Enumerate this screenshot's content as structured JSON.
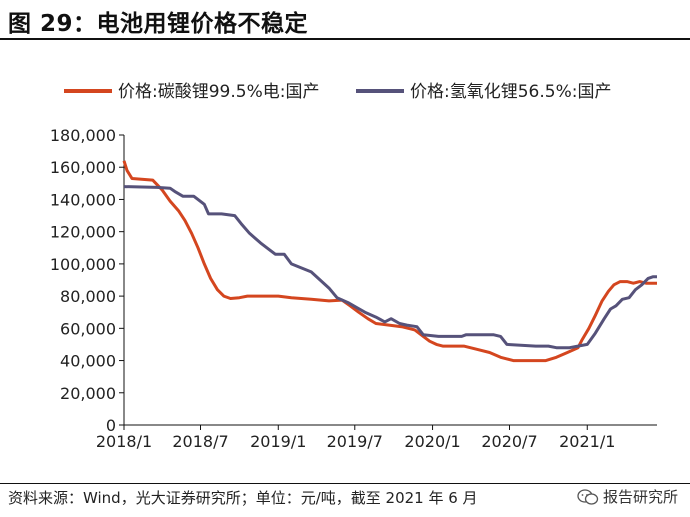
{
  "page": {
    "title": "图 29：电池用锂价格不稳定",
    "source": "资料来源：Wind，光大证券研究所；单位：元/吨，截至 2021 年 6 月",
    "watermark": "报告研究所"
  },
  "colors": {
    "series_1": "#d4461f",
    "series_2": "#56527a",
    "axis": "#111111"
  },
  "chart_data": {
    "type": "line",
    "title": "",
    "xlabel": "",
    "ylabel": "",
    "ylim": [
      0,
      180000
    ],
    "yticks": [
      0,
      20000,
      40000,
      60000,
      80000,
      100000,
      120000,
      140000,
      160000,
      180000
    ],
    "ytick_labels": [
      "0",
      "20,000",
      "40,000",
      "60,000",
      "80,000",
      "100,000",
      "120,000",
      "140,000",
      "160,000",
      "180,000"
    ],
    "xticks": [
      "2018-01-01",
      "2018-07-01",
      "2019-01-01",
      "2019-07-01",
      "2020-01-01",
      "2020-07-01",
      "2021-01-01"
    ],
    "xtick_labels": [
      "2018/1",
      "2018/7",
      "2019/1",
      "2019/7",
      "2020/1",
      "2020/7",
      "2021/1"
    ],
    "xlim": [
      "2018-01-01",
      "2021-06-15"
    ],
    "grid": false,
    "legend_position": "top",
    "series": [
      {
        "name": "价格:碳酸锂99.5%电:国产",
        "points": [
          [
            "2018-01-01",
            164000
          ],
          [
            "2018-01-08",
            158000
          ],
          [
            "2018-01-20",
            153000
          ],
          [
            "2018-03-10",
            152000
          ],
          [
            "2018-04-01",
            146000
          ],
          [
            "2018-04-20",
            139000
          ],
          [
            "2018-05-10",
            133000
          ],
          [
            "2018-05-25",
            127000
          ],
          [
            "2018-06-10",
            119000
          ],
          [
            "2018-06-25",
            110000
          ],
          [
            "2018-07-10",
            100000
          ],
          [
            "2018-07-25",
            91000
          ],
          [
            "2018-08-10",
            84000
          ],
          [
            "2018-08-25",
            80000
          ],
          [
            "2018-09-10",
            78500
          ],
          [
            "2018-10-01",
            79000
          ],
          [
            "2018-10-20",
            80000
          ],
          [
            "2019-01-01",
            80000
          ],
          [
            "2019-02-01",
            79000
          ],
          [
            "2019-03-20",
            78000
          ],
          [
            "2019-05-01",
            77000
          ],
          [
            "2019-06-01",
            77500
          ],
          [
            "2019-06-20",
            74000
          ],
          [
            "2019-07-10",
            70000
          ],
          [
            "2019-08-01",
            66000
          ],
          [
            "2019-08-20",
            63000
          ],
          [
            "2019-09-20",
            62000
          ],
          [
            "2019-10-20",
            61000
          ],
          [
            "2019-11-20",
            59000
          ],
          [
            "2019-12-10",
            55000
          ],
          [
            "2019-12-25",
            52000
          ],
          [
            "2020-01-10",
            50000
          ],
          [
            "2020-01-25",
            49000
          ],
          [
            "2020-03-15",
            49000
          ],
          [
            "2020-04-15",
            47000
          ],
          [
            "2020-05-15",
            45000
          ],
          [
            "2020-06-10",
            42000
          ],
          [
            "2020-06-25",
            41000
          ],
          [
            "2020-07-10",
            40000
          ],
          [
            "2020-09-10",
            40000
          ],
          [
            "2020-09-25",
            40000
          ],
          [
            "2020-10-20",
            42000
          ],
          [
            "2020-11-15",
            45000
          ],
          [
            "2020-12-10",
            48000
          ],
          [
            "2020-12-20",
            53000
          ],
          [
            "2021-01-05",
            60000
          ],
          [
            "2021-01-20",
            68000
          ],
          [
            "2021-02-05",
            77000
          ],
          [
            "2021-02-20",
            83000
          ],
          [
            "2021-03-05",
            87000
          ],
          [
            "2021-03-20",
            89000
          ],
          [
            "2021-04-05",
            89000
          ],
          [
            "2021-04-20",
            88000
          ],
          [
            "2021-05-05",
            89000
          ],
          [
            "2021-05-20",
            88000
          ],
          [
            "2021-06-15",
            88000
          ]
        ]
      },
      {
        "name": "价格:氢氧化锂56.5%:国产",
        "points": [
          [
            "2018-01-01",
            148000
          ],
          [
            "2018-03-20",
            147500
          ],
          [
            "2018-04-20",
            147000
          ],
          [
            "2018-05-01",
            145000
          ],
          [
            "2018-05-20",
            142000
          ],
          [
            "2018-06-15",
            142000
          ],
          [
            "2018-07-10",
            137000
          ],
          [
            "2018-07-20",
            131000
          ],
          [
            "2018-08-20",
            131000
          ],
          [
            "2018-09-20",
            130000
          ],
          [
            "2018-10-05",
            125000
          ],
          [
            "2018-10-25",
            119000
          ],
          [
            "2018-11-20",
            113000
          ],
          [
            "2018-12-10",
            109000
          ],
          [
            "2018-12-25",
            106000
          ],
          [
            "2019-01-15",
            106000
          ],
          [
            "2019-02-01",
            100000
          ],
          [
            "2019-02-20",
            98000
          ],
          [
            "2019-03-20",
            95000
          ],
          [
            "2019-04-10",
            90000
          ],
          [
            "2019-05-01",
            85000
          ],
          [
            "2019-05-20",
            79000
          ],
          [
            "2019-06-15",
            76000
          ],
          [
            "2019-07-05",
            73000
          ],
          [
            "2019-07-25",
            70000
          ],
          [
            "2019-08-20",
            67000
          ],
          [
            "2019-09-10",
            64000
          ],
          [
            "2019-09-25",
            66000
          ],
          [
            "2019-10-15",
            63000
          ],
          [
            "2019-11-01",
            62000
          ],
          [
            "2019-11-25",
            61000
          ],
          [
            "2019-12-10",
            56000
          ],
          [
            "2020-01-15",
            55000
          ],
          [
            "2020-03-10",
            55000
          ],
          [
            "2020-03-20",
            56000
          ],
          [
            "2020-05-25",
            56000
          ],
          [
            "2020-06-10",
            55000
          ],
          [
            "2020-06-25",
            50000
          ],
          [
            "2020-09-01",
            49000
          ],
          [
            "2020-10-01",
            49000
          ],
          [
            "2020-10-20",
            48000
          ],
          [
            "2020-11-20",
            48000
          ],
          [
            "2020-12-10",
            49000
          ],
          [
            "2021-01-01",
            50000
          ],
          [
            "2021-01-20",
            57000
          ],
          [
            "2021-02-10",
            66000
          ],
          [
            "2021-02-25",
            72000
          ],
          [
            "2021-03-10",
            74000
          ],
          [
            "2021-03-25",
            78000
          ],
          [
            "2021-04-10",
            79000
          ],
          [
            "2021-04-25",
            84000
          ],
          [
            "2021-05-10",
            87000
          ],
          [
            "2021-05-25",
            91000
          ],
          [
            "2021-06-05",
            92000
          ],
          [
            "2021-06-15",
            92000
          ]
        ]
      }
    ]
  }
}
